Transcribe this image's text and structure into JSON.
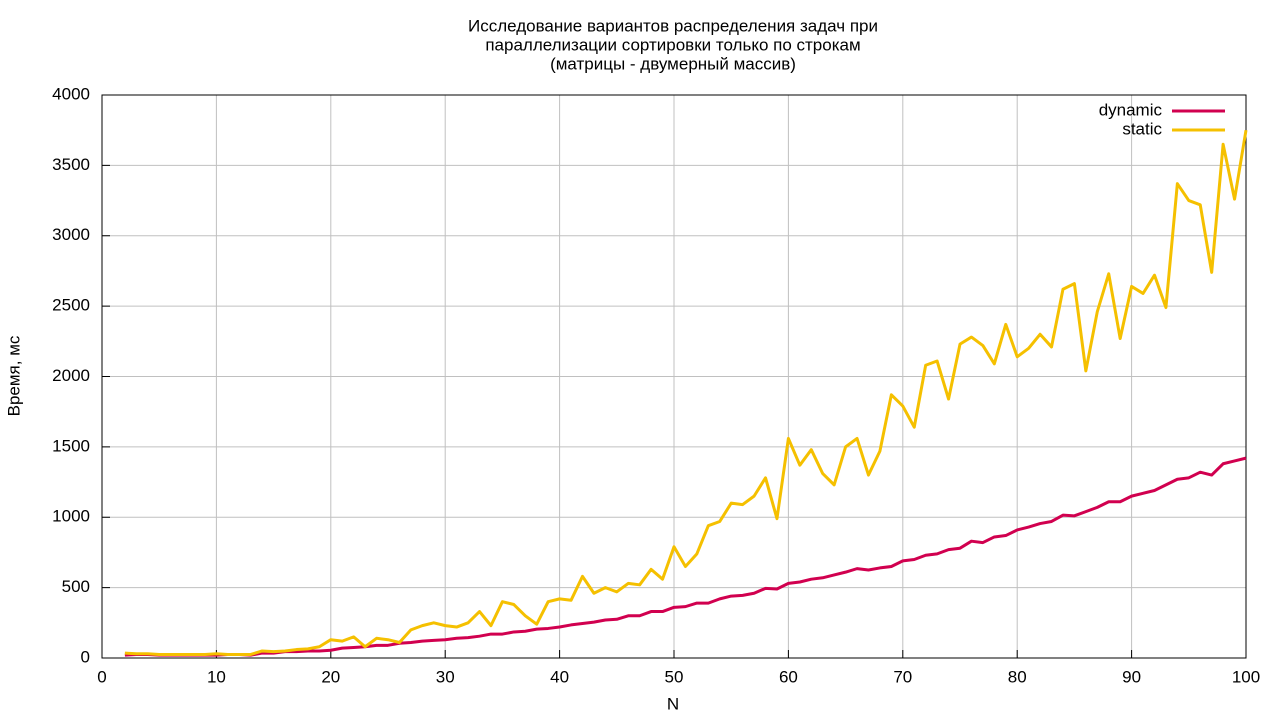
{
  "chart_data": {
    "type": "line",
    "title": [
      "Исследование вариантов распределения задач при",
      "параллелизации сортировки только по строкам",
      "(матрицы - двумерный массив)"
    ],
    "x_label": "N",
    "y_label": "Время, мс",
    "x": [
      2,
      3,
      4,
      5,
      6,
      7,
      8,
      9,
      10,
      11,
      12,
      13,
      14,
      15,
      16,
      17,
      18,
      19,
      20,
      21,
      22,
      23,
      24,
      25,
      26,
      27,
      28,
      29,
      30,
      31,
      32,
      33,
      34,
      35,
      36,
      37,
      38,
      39,
      40,
      41,
      42,
      43,
      44,
      45,
      46,
      47,
      48,
      49,
      50,
      51,
      52,
      53,
      54,
      55,
      56,
      57,
      58,
      59,
      60,
      61,
      62,
      63,
      64,
      65,
      66,
      67,
      68,
      69,
      70,
      71,
      72,
      73,
      74,
      75,
      76,
      77,
      78,
      79,
      80,
      81,
      82,
      83,
      84,
      85,
      86,
      87,
      88,
      89,
      90,
      91,
      92,
      93,
      94,
      95,
      96,
      97,
      98,
      99,
      100
    ],
    "series": [
      {
        "name": "dynamic",
        "color": "#d1004f",
        "values": [
          20,
          25,
          25,
          20,
          20,
          20,
          20,
          20,
          20,
          25,
          25,
          20,
          35,
          35,
          45,
          45,
          50,
          50,
          55,
          70,
          75,
          80,
          90,
          90,
          105,
          110,
          120,
          125,
          130,
          140,
          145,
          155,
          170,
          170,
          185,
          190,
          205,
          210,
          220,
          235,
          245,
          255,
          270,
          275,
          300,
          300,
          330,
          330,
          360,
          365,
          390,
          390,
          420,
          440,
          445,
          460,
          495,
          490,
          530,
          540,
          560,
          570,
          590,
          610,
          635,
          625,
          640,
          650,
          690,
          700,
          730,
          740,
          770,
          780,
          830,
          820,
          860,
          870,
          910,
          930,
          955,
          970,
          1015,
          1010,
          1040,
          1070,
          1110,
          1110,
          1150,
          1170,
          1190,
          1230,
          1270,
          1280,
          1320,
          1300,
          1380,
          1400,
          1420
        ]
      },
      {
        "name": "static",
        "color": "#f5c000",
        "values": [
          35,
          30,
          30,
          25,
          25,
          25,
          25,
          25,
          30,
          25,
          25,
          25,
          50,
          45,
          50,
          60,
          65,
          80,
          130,
          120,
          150,
          80,
          140,
          130,
          110,
          200,
          230,
          250,
          230,
          220,
          250,
          330,
          230,
          400,
          380,
          300,
          240,
          400,
          420,
          410,
          580,
          460,
          500,
          470,
          530,
          520,
          630,
          560,
          790,
          650,
          740,
          940,
          970,
          1100,
          1090,
          1150,
          1280,
          990,
          1560,
          1370,
          1480,
          1310,
          1230,
          1500,
          1560,
          1300,
          1470,
          1870,
          1790,
          1640,
          2080,
          2110,
          1840,
          2230,
          2280,
          2220,
          2090,
          2370,
          2140,
          2200,
          2300,
          2210,
          2620,
          2660,
          2040,
          2460,
          2730,
          2270,
          2640,
          2590,
          2720,
          2490,
          3370,
          3250,
          3220,
          2740,
          3650,
          3260,
          3750
        ]
      }
    ],
    "xlim": [
      0,
      100
    ],
    "xticks": [
      0,
      10,
      20,
      30,
      40,
      50,
      60,
      70,
      80,
      90,
      100
    ],
    "ylim": [
      0,
      4000
    ],
    "yticks": [
      0,
      500,
      1000,
      1500,
      2000,
      2500,
      3000,
      3500,
      4000
    ],
    "grid": true,
    "legend": "top-right"
  }
}
